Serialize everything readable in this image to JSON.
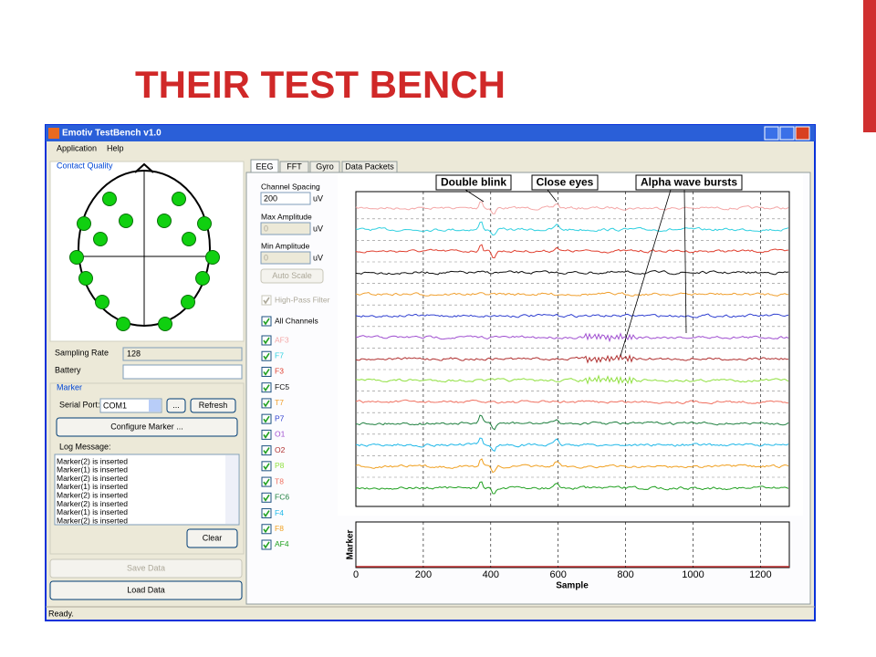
{
  "slide": {
    "title": "THEIR TEST BENCH"
  },
  "window": {
    "title": "Emotiv TestBench v1.0",
    "menu": [
      "Application",
      "Help"
    ],
    "status": "Ready."
  },
  "left": {
    "contact_quality": "Contact Quality",
    "sampling_rate_label": "Sampling Rate",
    "sampling_rate": "128",
    "battery": "Battery",
    "marker": "Marker",
    "serial_port": "Serial Port:",
    "port": "COM1",
    "browse": "...",
    "refresh": "Refresh",
    "configure": "Configure Marker ...",
    "log_label": "Log Message:",
    "log": [
      "Marker(2) is inserted",
      "Marker(1) is inserted",
      "Marker(2) is inserted",
      "Marker(1) is inserted",
      "Marker(2) is inserted",
      "Marker(2) is inserted",
      "Marker(1) is inserted",
      "Marker(2) is inserted"
    ],
    "clear": "Clear",
    "save": "Save Data",
    "load": "Load Data"
  },
  "tabs": [
    "EEG",
    "FFT",
    "Gyro",
    "Data Packets"
  ],
  "controls": {
    "channel_spacing": "Channel Spacing",
    "spacing": "200",
    "unit": "uV",
    "max_amplitude": "Max Amplitude",
    "max": "0",
    "min_amplitude": "Min Amplitude",
    "min": "0",
    "auto_scale": "Auto Scale",
    "high_pass": "High-Pass Filter",
    "all_channels": "All Channels"
  },
  "channels": [
    {
      "name": "AF3",
      "color": "#f4a7a7"
    },
    {
      "name": "F7",
      "color": "#30d0e0"
    },
    {
      "name": "F3",
      "color": "#e04030"
    },
    {
      "name": "FC5",
      "color": "#101010"
    },
    {
      "name": "T7",
      "color": "#f0a030"
    },
    {
      "name": "P7",
      "color": "#3040d0"
    },
    {
      "name": "O1",
      "color": "#a050d0"
    },
    {
      "name": "O2",
      "color": "#b03030"
    },
    {
      "name": "P8",
      "color": "#90e040"
    },
    {
      "name": "T8",
      "color": "#f07060"
    },
    {
      "name": "FC6",
      "color": "#208040"
    },
    {
      "name": "F4",
      "color": "#20b8e8"
    },
    {
      "name": "F8",
      "color": "#f0a020"
    },
    {
      "name": "AF4",
      "color": "#20a020"
    }
  ],
  "annotations": [
    "Double blink",
    "Close eyes",
    "Alpha wave bursts"
  ],
  "marker_plot": {
    "ylabel": "Marker",
    "xlabel": "Sample",
    "xticks": [
      0,
      200,
      400,
      600,
      800,
      1000,
      1200
    ]
  }
}
